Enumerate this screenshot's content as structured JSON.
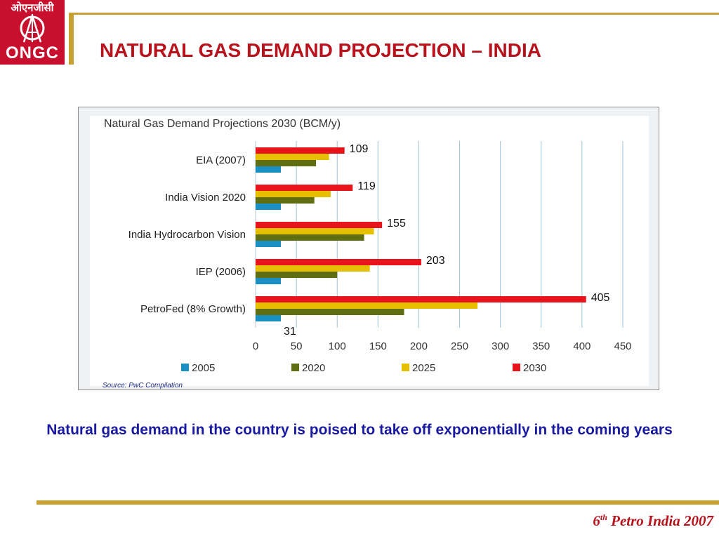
{
  "logo": {
    "hindi": "ओएनजीसी",
    "text": "ONGC"
  },
  "title": "NATURAL GAS DEMAND PROJECTION – INDIA",
  "chart_data": {
    "type": "bar",
    "orientation": "horizontal",
    "title": "Natural Gas Demand Projections 2030 (BCM/y)",
    "categories": [
      "EIA (2007)",
      "India Vision 2020",
      "India Hydrocarbon Vision",
      "IEP (2006)",
      "PetroFed (8% Growth)"
    ],
    "series": [
      {
        "name": "2030",
        "color": "#e8141b",
        "values": [
          109,
          119,
          155,
          203,
          405
        ]
      },
      {
        "name": "2025",
        "color": "#e6c000",
        "values": [
          90,
          92,
          145,
          140,
          272
        ]
      },
      {
        "name": "2020",
        "color": "#5e6e10",
        "values": [
          74,
          72,
          133,
          100,
          182
        ]
      },
      {
        "name": "2005",
        "color": "#1a8fc4",
        "values": [
          31,
          31,
          31,
          31,
          31
        ]
      }
    ],
    "data_labels": [
      {
        "category": "EIA (2007)",
        "series": "2030",
        "text": "109"
      },
      {
        "category": "India Vision 2020",
        "series": "2030",
        "text": "119"
      },
      {
        "category": "India Hydrocarbon Vision",
        "series": "2030",
        "text": "155"
      },
      {
        "category": "IEP (2006)",
        "series": "2030",
        "text": "203"
      },
      {
        "category": "PetroFed (8% Growth)",
        "series": "2030",
        "text": "405"
      },
      {
        "category": "PetroFed (8% Growth)",
        "series": "2005",
        "text": "31"
      }
    ],
    "xlim": [
      0,
      450
    ],
    "xticks": [
      "0",
      "50",
      "100",
      "150",
      "200",
      "250",
      "300",
      "350",
      "400",
      "450"
    ],
    "grid": true,
    "legend": {
      "position": "bottom",
      "order": [
        "2005",
        "2020",
        "2025",
        "2030"
      ]
    },
    "source": "Source: PwC Compilation"
  },
  "caption": "Natural gas demand in the country is poised to take off exponentially in the coming years",
  "footer": {
    "prefix": "6",
    "sup": "th",
    "rest": " Petro India 2007"
  }
}
